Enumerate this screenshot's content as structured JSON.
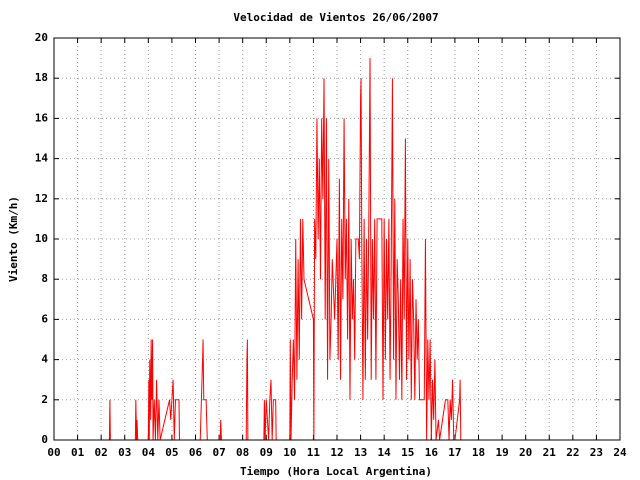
{
  "chart_data": {
    "type": "line",
    "title": "Velocidad de Vientos 26/06/2007",
    "x_label": "Tiempo (Hora Local Argentina)",
    "y_label": "Viento (Km/h)",
    "color": "#ff0000",
    "grid": true,
    "xlim": [
      0,
      24
    ],
    "ylim": [
      0,
      20
    ],
    "xticks": [
      {
        "value": 0,
        "label": "00"
      },
      {
        "value": 1,
        "label": "01"
      },
      {
        "value": 2,
        "label": "02"
      },
      {
        "value": 3,
        "label": "03"
      },
      {
        "value": 4,
        "label": "04"
      },
      {
        "value": 5,
        "label": "05"
      },
      {
        "value": 6,
        "label": "06"
      },
      {
        "value": 7,
        "label": "07"
      },
      {
        "value": 8,
        "label": "08"
      },
      {
        "value": 9,
        "label": "09"
      },
      10,
      11,
      12,
      13,
      14,
      15,
      16,
      17,
      18,
      19,
      20,
      21,
      22,
      23,
      24
    ],
    "yticks": [
      0,
      2,
      4,
      6,
      8,
      10,
      12,
      14,
      16,
      18,
      20
    ],
    "x": [
      2.35,
      2.37,
      2.39,
      3.45,
      3.47,
      3.5,
      3.52,
      3.55,
      4.0,
      4.02,
      4.04,
      4.06,
      4.1,
      4.12,
      4.15,
      4.18,
      4.2,
      4.25,
      4.3,
      4.35,
      4.4,
      4.45,
      4.5,
      4.9,
      4.95,
      5.0,
      5.05,
      5.1,
      5.15,
      5.3,
      5.32,
      6.2,
      6.25,
      6.3,
      6.32,
      6.35,
      6.45,
      6.5,
      7.05,
      7.07,
      7.1,
      8.15,
      8.18,
      8.2,
      8.22,
      8.9,
      8.92,
      8.95,
      9.0,
      9.1,
      9.15,
      9.2,
      9.25,
      9.3,
      9.4,
      9.42,
      10.0,
      10.02,
      10.05,
      10.1,
      10.15,
      10.2,
      10.25,
      10.3,
      10.35,
      10.4,
      10.45,
      10.5,
      10.55,
      10.6,
      11.0,
      11.02,
      11.05,
      11.1,
      11.15,
      11.2,
      11.25,
      11.3,
      11.35,
      11.4,
      11.45,
      11.5,
      11.55,
      11.6,
      11.65,
      11.7,
      11.75,
      11.8,
      11.9,
      12.0,
      12.05,
      12.1,
      12.15,
      12.2,
      12.25,
      12.3,
      12.35,
      12.4,
      12.45,
      12.5,
      12.55,
      12.6,
      12.65,
      12.7,
      12.75,
      12.8,
      12.9,
      12.95,
      13.0,
      13.02,
      13.05,
      13.1,
      13.15,
      13.2,
      13.25,
      13.3,
      13.35,
      13.4,
      13.45,
      13.5,
      13.55,
      13.6,
      13.65,
      13.7,
      13.8,
      13.9,
      13.95,
      14.0,
      14.05,
      14.1,
      14.15,
      14.2,
      14.25,
      14.3,
      14.35,
      14.4,
      14.45,
      14.5,
      14.55,
      14.6,
      14.65,
      14.7,
      14.75,
      14.8,
      14.85,
      14.9,
      14.95,
      15.0,
      15.05,
      15.1,
      15.15,
      15.2,
      15.25,
      15.3,
      15.35,
      15.4,
      15.45,
      15.5,
      15.7,
      15.75,
      15.8,
      15.85,
      15.9,
      15.95,
      16.0,
      16.05,
      16.1,
      16.15,
      16.2,
      16.3,
      16.35,
      16.6,
      16.7,
      16.75,
      16.8,
      16.85,
      16.9,
      16.95,
      17.0,
      17.2,
      17.22,
      17.25
    ],
    "values": [
      0,
      2,
      0,
      0,
      2,
      0,
      1,
      0,
      0,
      3,
      0,
      4,
      1,
      5,
      2,
      5,
      0,
      2,
      0,
      3,
      0,
      2,
      0,
      2,
      1,
      2,
      3,
      0,
      2,
      2,
      0,
      0,
      2,
      4,
      5,
      2,
      2,
      0,
      0,
      1,
      0,
      0,
      4,
      5,
      0,
      0,
      2,
      0,
      2,
      0,
      2,
      3,
      0,
      2,
      2,
      0,
      0,
      5,
      0,
      3,
      5,
      2,
      10,
      3,
      9,
      4,
      11,
      6,
      11,
      8,
      6,
      0,
      11,
      9,
      16,
      10,
      14,
      8,
      16,
      12,
      18,
      6,
      16,
      3,
      14,
      4,
      6,
      9,
      6,
      10,
      4,
      13,
      3,
      11,
      7,
      16,
      8,
      11,
      5,
      12,
      2,
      10,
      6,
      8,
      4,
      10,
      10,
      9,
      17,
      18,
      10,
      2,
      11,
      3,
      10,
      5,
      11,
      19,
      3,
      10,
      6,
      11,
      3,
      11,
      11,
      11,
      2,
      11,
      4,
      10,
      6,
      11,
      3,
      9,
      18,
      4,
      12,
      2,
      9,
      7,
      3,
      8,
      2,
      11,
      6,
      15,
      3,
      10,
      4,
      9,
      2,
      8,
      6,
      2,
      7,
      4,
      6,
      2,
      2,
      10,
      0,
      5,
      2,
      5,
      0,
      3,
      1,
      4,
      0,
      1,
      0,
      2,
      2,
      0,
      2,
      1,
      3,
      0,
      0,
      2,
      3,
      0
    ]
  }
}
